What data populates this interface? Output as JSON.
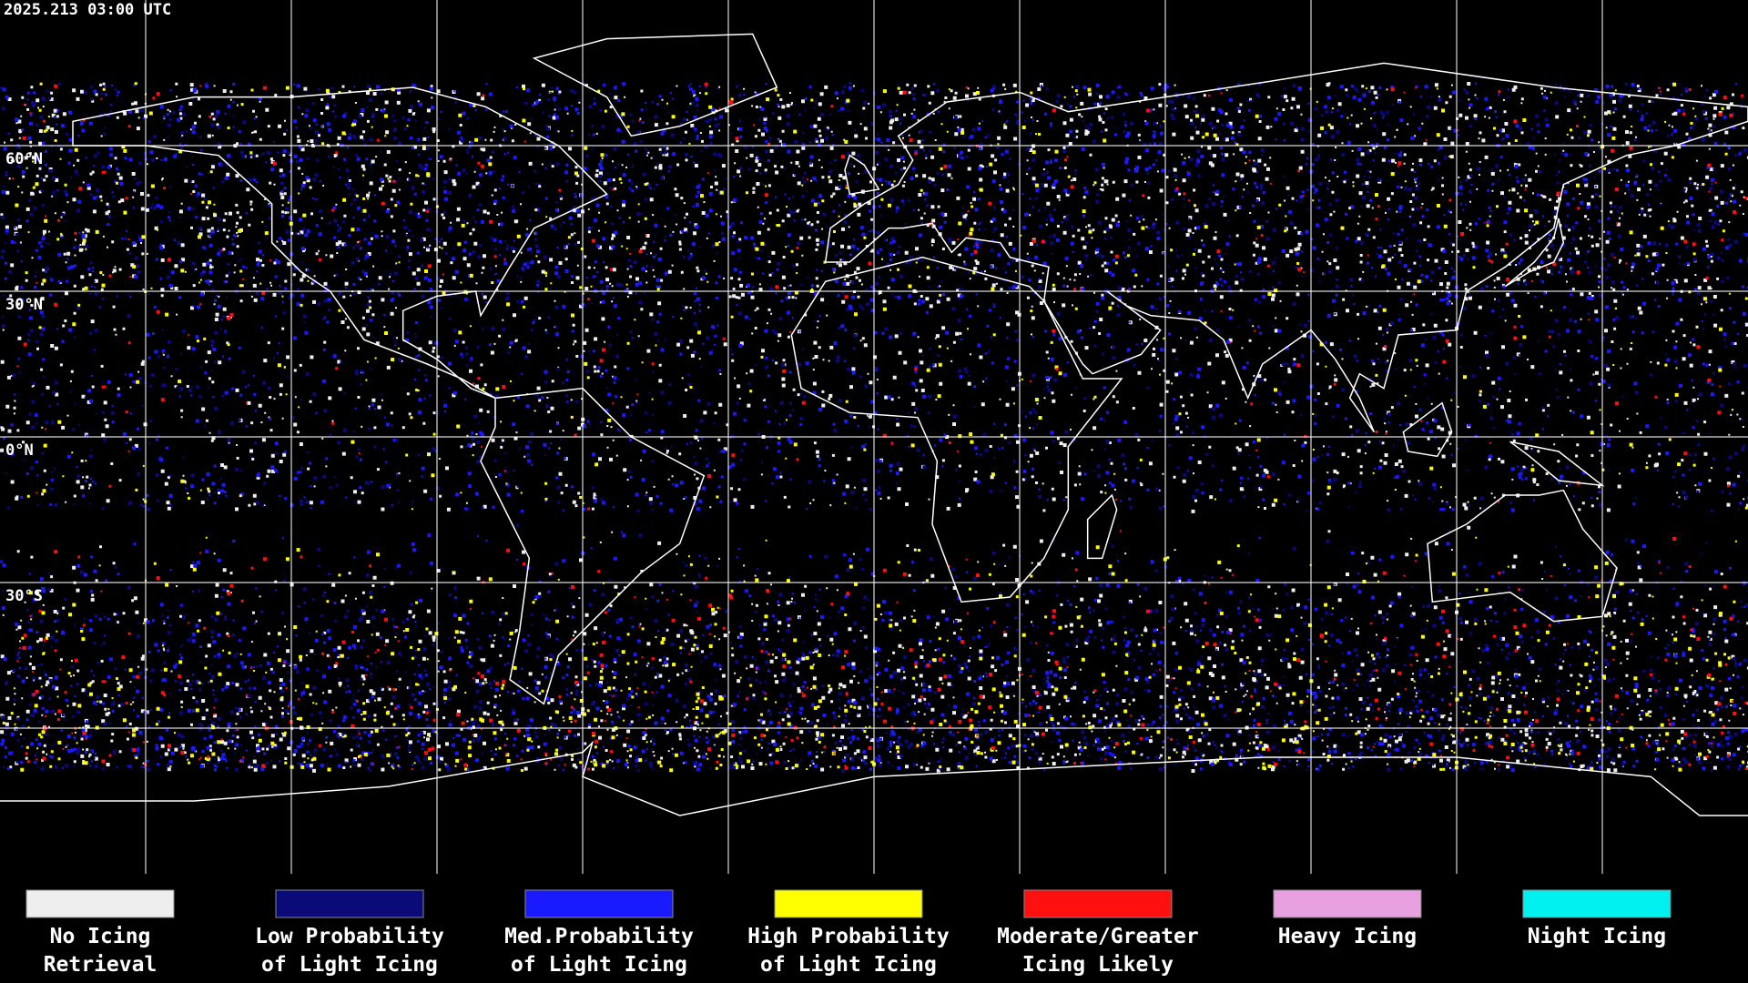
{
  "timestamp": "2025.213 03:00 UTC",
  "lat_labels": [
    "60°N",
    "30°N",
    "0°N",
    "30°S"
  ],
  "legend": [
    {
      "color": "#eeeeee",
      "label": [
        "No Icing",
        "Retrieval"
      ]
    },
    {
      "color": "#0a0a78",
      "label": [
        "Low Probability",
        "of Light Icing"
      ]
    },
    {
      "color": "#1a1aff",
      "label": [
        "Med.Probability",
        "of Light Icing"
      ]
    },
    {
      "color": "#ffff00",
      "label": [
        "High Probability",
        "of Light Icing"
      ]
    },
    {
      "color": "#ff1010",
      "label": [
        "Moderate/Greater",
        "Icing Likely"
      ]
    },
    {
      "color": "#e8a0e0",
      "label": [
        "Heavy Icing"
      ]
    },
    {
      "color": "#00f0f0",
      "label": [
        "Night Icing"
      ]
    }
  ]
}
